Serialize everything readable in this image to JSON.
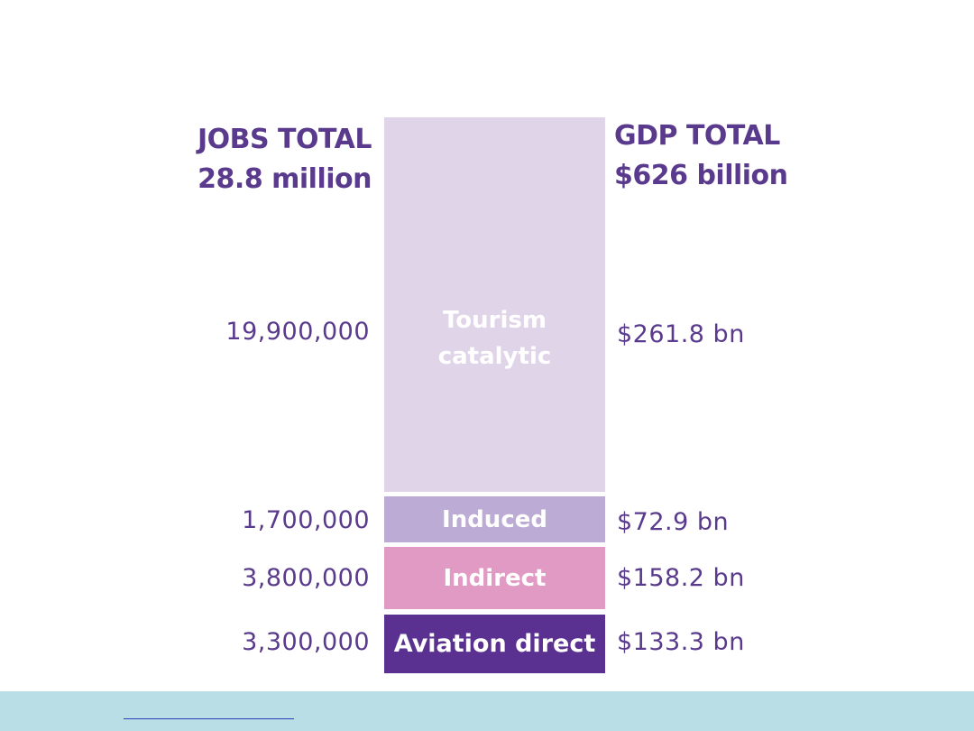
{
  "chart_data": {
    "type": "bar",
    "header": {
      "jobs_line1": "JOBS TOTAL",
      "jobs_line2": "28.8 million",
      "gdp_line1": "GDP TOTAL",
      "gdp_line2": "$626 billion"
    },
    "segments": [
      {
        "name": "Aviation direct",
        "jobs": 3300000,
        "jobs_label": "3,300,000",
        "gdp": 133.3,
        "gdp_label": "$133.3 bn",
        "color": "#5a3190",
        "label_lines": [
          "Aviation direct"
        ]
      },
      {
        "name": "Indirect",
        "jobs": 3800000,
        "jobs_label": "3,800,000",
        "gdp": 158.2,
        "gdp_label": "$158.2 bn",
        "color": "#e09ac4",
        "label_lines": [
          "Indirect"
        ]
      },
      {
        "name": "Induced",
        "jobs": 1700000,
        "jobs_label": "1,700,000",
        "gdp": 72.9,
        "gdp_label": "$72.9 bn",
        "color": "#bcabd4",
        "label_lines": [
          "Induced"
        ]
      },
      {
        "name": "Tourism catalytic",
        "jobs": 19900000,
        "jobs_label": "19,900,000",
        "gdp": 261.8,
        "gdp_label": "$261.8 bn",
        "color": "#e0d5e8",
        "label_lines": [
          "Tourism",
          "catalytic"
        ]
      }
    ],
    "colors": {
      "text": "#5a3a8c",
      "footer": "#b9dee6",
      "link": "#2a3fb8"
    }
  }
}
